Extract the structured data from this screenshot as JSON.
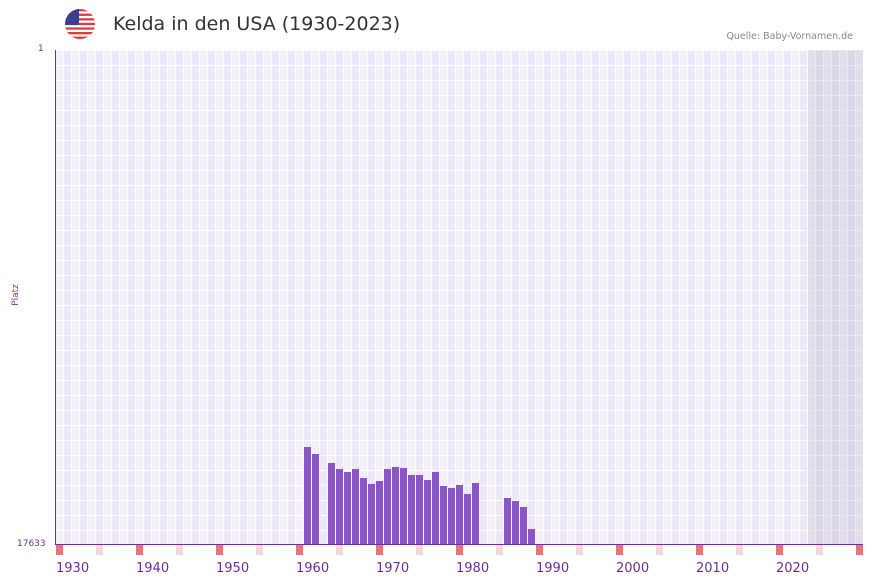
{
  "header": {
    "title": "Kelda in den USA (1930-2023)",
    "source": "Quelle: Baby-Vornamen.de",
    "flag_icon": "usa-flag-icon"
  },
  "axes": {
    "y_top_label": "1",
    "y_bottom_label": "17633",
    "y_name": "Platz",
    "x_labels": [
      "1930",
      "1940",
      "1950",
      "1960",
      "1970",
      "1980",
      "1990",
      "2000",
      "2010",
      "2020"
    ]
  },
  "colors": {
    "bar": "#8a55c8",
    "axis": "#6a2f9e",
    "decade_tick": "#e5757c",
    "half_decade_tick": "#f4d6e0"
  },
  "chart_data": {
    "type": "bar",
    "title": "Kelda in den USA (1930-2023)",
    "xlabel": "",
    "ylabel": "Platz",
    "ylim": [
      17633,
      1
    ],
    "y_inverted": true,
    "grid": true,
    "x_range": [
      1930,
      2030
    ],
    "shaded_future_from": 2024,
    "categories": [
      1961,
      1962,
      1964,
      1965,
      1966,
      1967,
      1968,
      1969,
      1970,
      1971,
      1972,
      1973,
      1974,
      1975,
      1976,
      1977,
      1978,
      1979,
      1980,
      1981,
      1982,
      1986,
      1987,
      1988,
      1989
    ],
    "values": [
      14157,
      14406,
      14727,
      14941,
      15048,
      14941,
      15262,
      15476,
      15369,
      14941,
      14870,
      14906,
      15155,
      15155,
      15333,
      15048,
      15547,
      15618,
      15511,
      15832,
      15440,
      15975,
      16082,
      16296,
      17080
    ]
  }
}
